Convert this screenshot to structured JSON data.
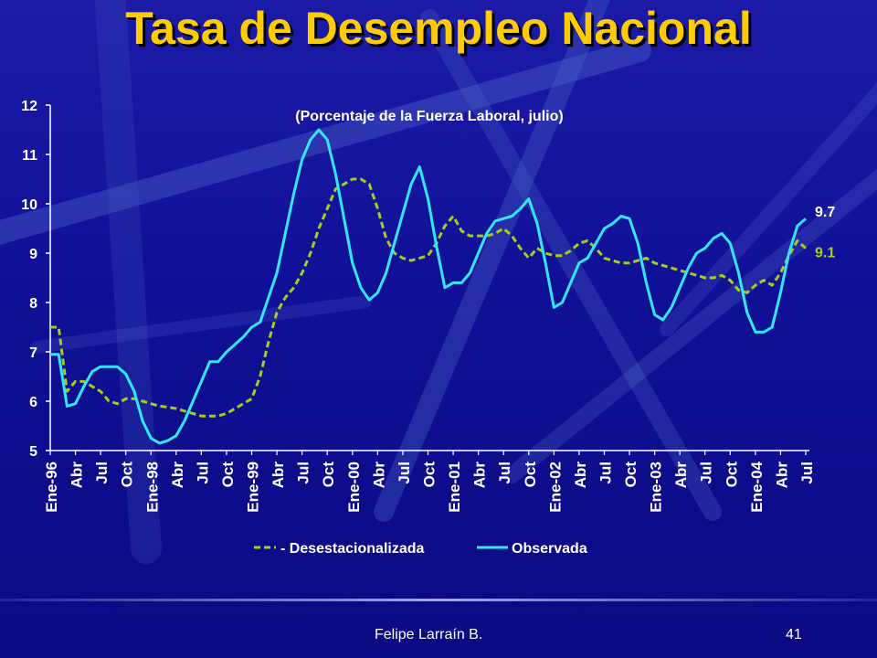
{
  "slide": {
    "title": "Tasa de Desempleo Nacional",
    "author": "Felipe Larraín B.",
    "page_number": "41"
  },
  "colors": {
    "background": "#10109a",
    "title": "#ffcc00",
    "observed": "#33e6ff",
    "deseasonalized": "#a8cc1a",
    "text": "#ffffff"
  },
  "chart_data": {
    "type": "line",
    "title": "",
    "subtitle": "(Porcentaje de la Fuerza Laboral, julio)",
    "xlabel": "",
    "ylabel": "",
    "ylim": [
      5,
      12
    ],
    "yticks": [
      5,
      6,
      7,
      8,
      9,
      10,
      11,
      12
    ],
    "grid": false,
    "legend_position": "bottom",
    "x_tick_labels": [
      "Ene-96",
      "Abr",
      "Jul",
      "Oct",
      "Ene-98",
      "Abr",
      "Jul",
      "Oct",
      "Ene-99",
      "Abr",
      "Jul",
      "Oct",
      "Ene-00",
      "Abr",
      "Jul",
      "Oct",
      "Ene-01",
      "Abr",
      "Jul",
      "Oct",
      "Ene-02",
      "Abr",
      "Jul",
      "Oct",
      "Ene-03",
      "Abr",
      "Jul",
      "Oct",
      "Ene-04",
      "Abr",
      "Jul"
    ],
    "x": [
      "Ene-96",
      "Feb",
      "Mar",
      "Abr",
      "May",
      "Jun",
      "Jul",
      "Ago",
      "Sep",
      "Oct",
      "Nov",
      "Dic",
      "Ene-98",
      "Feb",
      "Mar",
      "Abr",
      "May",
      "Jun",
      "Jul",
      "Ago",
      "Sep",
      "Oct",
      "Nov",
      "Dic",
      "Ene-99",
      "Feb",
      "Mar",
      "Abr",
      "May",
      "Jun",
      "Jul",
      "Ago",
      "Sep",
      "Oct",
      "Nov",
      "Dic",
      "Ene-00",
      "Feb",
      "Mar",
      "Abr",
      "May",
      "Jun",
      "Jul",
      "Ago",
      "Sep",
      "Oct",
      "Nov",
      "Dic",
      "Ene-01",
      "Feb",
      "Mar",
      "Abr",
      "May",
      "Jun",
      "Jul",
      "Ago",
      "Sep",
      "Oct",
      "Nov",
      "Dic",
      "Ene-02",
      "Feb",
      "Mar",
      "Abr",
      "May",
      "Jun",
      "Jul",
      "Ago",
      "Sep",
      "Oct",
      "Nov",
      "Dic",
      "Ene-03",
      "Feb",
      "Mar",
      "Abr",
      "May",
      "Jun",
      "Jul",
      "Ago",
      "Sep",
      "Oct",
      "Nov",
      "Dic",
      "Ene-04",
      "Feb",
      "Mar",
      "Abr",
      "May",
      "Jun",
      "Jul"
    ],
    "series": [
      {
        "name": "Desestacionalizada",
        "style": "dashed",
        "end_label": "9.1",
        "values": [
          7.5,
          7.5,
          6.2,
          6.4,
          6.4,
          6.3,
          6.2,
          6.0,
          5.95,
          6.05,
          6.05,
          6.0,
          5.95,
          5.9,
          5.88,
          5.85,
          5.8,
          5.75,
          5.7,
          5.7,
          5.7,
          5.75,
          5.85,
          5.95,
          6.05,
          6.5,
          7.2,
          7.8,
          8.1,
          8.3,
          8.6,
          9.0,
          9.5,
          9.9,
          10.3,
          10.4,
          10.5,
          10.5,
          10.4,
          9.9,
          9.3,
          9.0,
          8.9,
          8.85,
          8.9,
          8.95,
          9.2,
          9.55,
          9.75,
          9.45,
          9.35,
          9.35,
          9.35,
          9.4,
          9.5,
          9.35,
          9.1,
          8.9,
          9.1,
          9.0,
          8.95,
          8.95,
          9.05,
          9.2,
          9.25,
          9.1,
          8.9,
          8.85,
          8.8,
          8.8,
          8.85,
          8.9,
          8.8,
          8.75,
          8.7,
          8.65,
          8.6,
          8.55,
          8.5,
          8.5,
          8.55,
          8.45,
          8.25,
          8.2,
          8.35,
          8.45,
          8.35,
          8.6,
          8.95,
          9.25,
          9.1
        ]
      },
      {
        "name": "Observada",
        "style": "solid",
        "end_label": "9.7",
        "values": [
          6.95,
          6.95,
          5.9,
          5.95,
          6.3,
          6.6,
          6.7,
          6.7,
          6.7,
          6.55,
          6.2,
          5.6,
          5.25,
          5.15,
          5.2,
          5.3,
          5.6,
          6.0,
          6.4,
          6.8,
          6.8,
          7.0,
          7.15,
          7.3,
          7.5,
          7.6,
          8.1,
          8.6,
          9.4,
          10.2,
          10.9,
          11.3,
          11.5,
          11.3,
          10.6,
          9.7,
          8.8,
          8.3,
          8.05,
          8.2,
          8.6,
          9.2,
          9.8,
          10.4,
          10.75,
          10.1,
          9.15,
          8.3,
          8.4,
          8.4,
          8.6,
          9.0,
          9.4,
          9.65,
          9.7,
          9.75,
          9.9,
          10.1,
          9.6,
          8.8,
          7.9,
          8.0,
          8.4,
          8.8,
          8.9,
          9.2,
          9.5,
          9.6,
          9.75,
          9.7,
          9.2,
          8.4,
          7.75,
          7.65,
          7.9,
          8.3,
          8.7,
          9.0,
          9.1,
          9.3,
          9.4,
          9.2,
          8.6,
          7.8,
          7.4,
          7.4,
          7.5,
          8.2,
          9.0,
          9.55,
          9.7
        ]
      }
    ]
  }
}
